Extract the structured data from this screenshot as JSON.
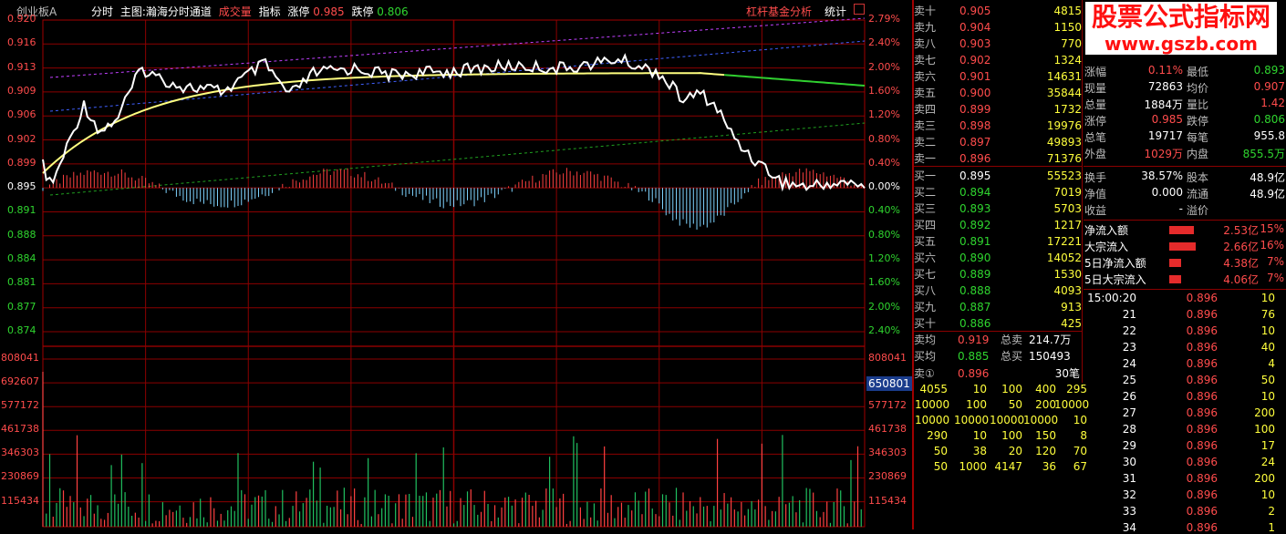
{
  "header": {
    "symbol": "创业板A",
    "items": [
      "分时",
      "主图:瀚海分时通道",
      "成交量",
      "指标",
      "涨停",
      "0.985",
      "跌停",
      "0.806"
    ],
    "link": "杠杆基金分析",
    "stats": "统计"
  },
  "watermark": {
    "title": "股票公式指标网",
    "url": "www.gszb.com"
  },
  "price_axis": {
    "left": [
      "0.920",
      "0.916",
      "0.913",
      "0.909",
      "0.906",
      "0.902",
      "0.899",
      "0.895",
      "0.891",
      "0.888",
      "0.884",
      "0.881",
      "0.877",
      "0.874"
    ],
    "right": [
      "2.79%",
      "2.40%",
      "2.00%",
      "1.60%",
      "1.20%",
      "0.80%",
      "0.40%",
      "0.00%",
      "0.40%",
      "0.80%",
      "1.20%",
      "1.60%",
      "2.00%",
      "2.40%"
    ],
    "right_colors": [
      "#ff4c4c",
      "#ff4c4c",
      "#ff4c4c",
      "#ff4c4c",
      "#ff4c4c",
      "#ff4c4c",
      "#ff4c4c",
      "#ffffff",
      "#2fd52f",
      "#2fd52f",
      "#2fd52f",
      "#2fd52f",
      "#2fd52f",
      "#2fd52f"
    ]
  },
  "volume_axis": {
    "labels": [
      "808041",
      "692607",
      "577172",
      "461738",
      "346303",
      "230869",
      "115434"
    ],
    "highlight": "650801"
  },
  "order_book": {
    "asks": [
      {
        "label": "卖十",
        "price": "0.905",
        "vol": "4815"
      },
      {
        "label": "卖九",
        "price": "0.904",
        "vol": "1150"
      },
      {
        "label": "卖八",
        "price": "0.903",
        "vol": "770"
      },
      {
        "label": "卖七",
        "price": "0.902",
        "vol": "1324"
      },
      {
        "label": "卖六",
        "price": "0.901",
        "vol": "14631"
      },
      {
        "label": "卖五",
        "price": "0.900",
        "vol": "35844"
      },
      {
        "label": "卖四",
        "price": "0.899",
        "vol": "1732"
      },
      {
        "label": "卖三",
        "price": "0.898",
        "vol": "19976"
      },
      {
        "label": "卖二",
        "price": "0.897",
        "vol": "49893"
      },
      {
        "label": "卖一",
        "price": "0.896",
        "vol": "71376"
      }
    ],
    "bids": [
      {
        "label": "买一",
        "price": "0.895",
        "vol": "55523"
      },
      {
        "label": "买二",
        "price": "0.894",
        "vol": "7019"
      },
      {
        "label": "买三",
        "price": "0.893",
        "vol": "5703"
      },
      {
        "label": "买四",
        "price": "0.892",
        "vol": "1217"
      },
      {
        "label": "买五",
        "price": "0.891",
        "vol": "17221"
      },
      {
        "label": "买六",
        "price": "0.890",
        "vol": "14052"
      },
      {
        "label": "买七",
        "price": "0.889",
        "vol": "1530"
      },
      {
        "label": "买八",
        "price": "0.888",
        "vol": "4093"
      },
      {
        "label": "买九",
        "price": "0.887",
        "vol": "913"
      },
      {
        "label": "买十",
        "price": "0.886",
        "vol": "425"
      }
    ],
    "avg_sell_label": "卖均",
    "avg_sell": "0.919",
    "total_sell_label": "总卖",
    "total_sell": "214.7万",
    "avg_buy_label": "买均",
    "avg_buy": "0.885",
    "total_buy_label": "总买",
    "total_buy": "150493",
    "queue_label": "卖①",
    "queue_price": "0.896",
    "queue_count": "30笔",
    "queue_rows": [
      [
        "4055",
        "10",
        "100",
        "400",
        "295"
      ],
      [
        "10000",
        "100",
        "50",
        "200",
        "10000"
      ],
      [
        "10000",
        "10000",
        "10000",
        "10000",
        "10"
      ],
      [
        "290",
        "10",
        "100",
        "150",
        "8"
      ],
      [
        "50",
        "38",
        "20",
        "120",
        "70"
      ],
      [
        "50",
        "1000",
        "4147",
        "36",
        "67"
      ]
    ]
  },
  "quote": {
    "rows": [
      [
        {
          "k": "涨幅",
          "v": "0.11%",
          "c": "red"
        },
        {
          "k": "最低",
          "v": "0.893",
          "c": "green"
        }
      ],
      [
        {
          "k": "现量",
          "v": "72863",
          "c": "white"
        },
        {
          "k": "均价",
          "v": "0.907",
          "c": "red"
        }
      ],
      [
        {
          "k": "总量",
          "v": "1884万",
          "c": "white"
        },
        {
          "k": "量比",
          "v": "1.42",
          "c": "red"
        }
      ],
      [
        {
          "k": "涨停",
          "v": "0.985",
          "c": "red"
        },
        {
          "k": "跌停",
          "v": "0.806",
          "c": "green"
        }
      ],
      [
        {
          "k": "总笔",
          "v": "19717",
          "c": "white"
        },
        {
          "k": "每笔",
          "v": "955.8",
          "c": "white"
        }
      ],
      [
        {
          "k": "外盘",
          "v": "1029万",
          "c": "red"
        },
        {
          "k": "内盘",
          "v": "855.5万",
          "c": "green"
        }
      ]
    ],
    "rows2": [
      [
        {
          "k": "换手",
          "v": "38.57%",
          "c": "white"
        },
        {
          "k": "股本",
          "v": "48.9亿",
          "c": "white"
        }
      ],
      [
        {
          "k": "净值",
          "v": "0.000",
          "c": "white"
        },
        {
          "k": "流通",
          "v": "48.9亿",
          "c": "white"
        }
      ],
      [
        {
          "k": "收益",
          "v": "-",
          "c": "white"
        },
        {
          "k": "溢价",
          "v": "",
          "c": "white"
        }
      ]
    ]
  },
  "fund_flow": [
    {
      "label": "净流入额",
      "value": "2.53亿",
      "pct": "15%",
      "bar": 0.15
    },
    {
      "label": "大宗流入",
      "value": "2.66亿",
      "pct": "16%",
      "bar": 0.16
    },
    {
      "label": "5日净流入额",
      "value": "4.38亿",
      "pct": "7%",
      "bar": 0.07
    },
    {
      "label": "5日大宗流入",
      "value": "4.06亿",
      "pct": "7%",
      "bar": 0.07
    }
  ],
  "ticks": [
    {
      "t": "15:00:20",
      "p": "0.896",
      "v": "10"
    },
    {
      "t": "21",
      "p": "0.896",
      "v": "76"
    },
    {
      "t": "22",
      "p": "0.896",
      "v": "10"
    },
    {
      "t": "23",
      "p": "0.896",
      "v": "40"
    },
    {
      "t": "24",
      "p": "0.896",
      "v": "4"
    },
    {
      "t": "25",
      "p": "0.896",
      "v": "50"
    },
    {
      "t": "26",
      "p": "0.896",
      "v": "10"
    },
    {
      "t": "27",
      "p": "0.896",
      "v": "200"
    },
    {
      "t": "28",
      "p": "0.896",
      "v": "100"
    },
    {
      "t": "29",
      "p": "0.896",
      "v": "17"
    },
    {
      "t": "30",
      "p": "0.896",
      "v": "24"
    },
    {
      "t": "31",
      "p": "0.896",
      "v": "200"
    },
    {
      "t": "32",
      "p": "0.896",
      "v": "10"
    },
    {
      "t": "33",
      "p": "0.896",
      "v": "2"
    },
    {
      "t": "34",
      "p": "0.896",
      "v": "1"
    }
  ]
}
